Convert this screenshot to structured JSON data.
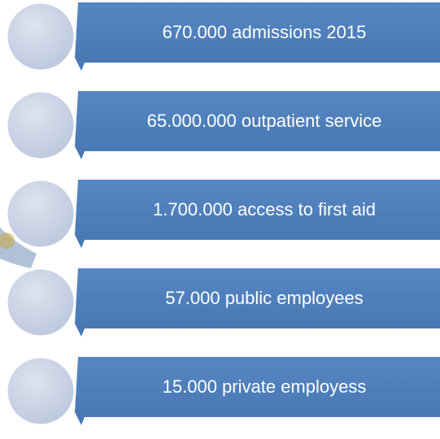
{
  "items": [
    {
      "label": "670.000 admissions 2015"
    },
    {
      "label": "65.000.000 outpatient service"
    },
    {
      "label": "1.700.000 access to first aid"
    },
    {
      "label": "57.000 public employees"
    },
    {
      "label": "15.000 private  employess"
    }
  ]
}
